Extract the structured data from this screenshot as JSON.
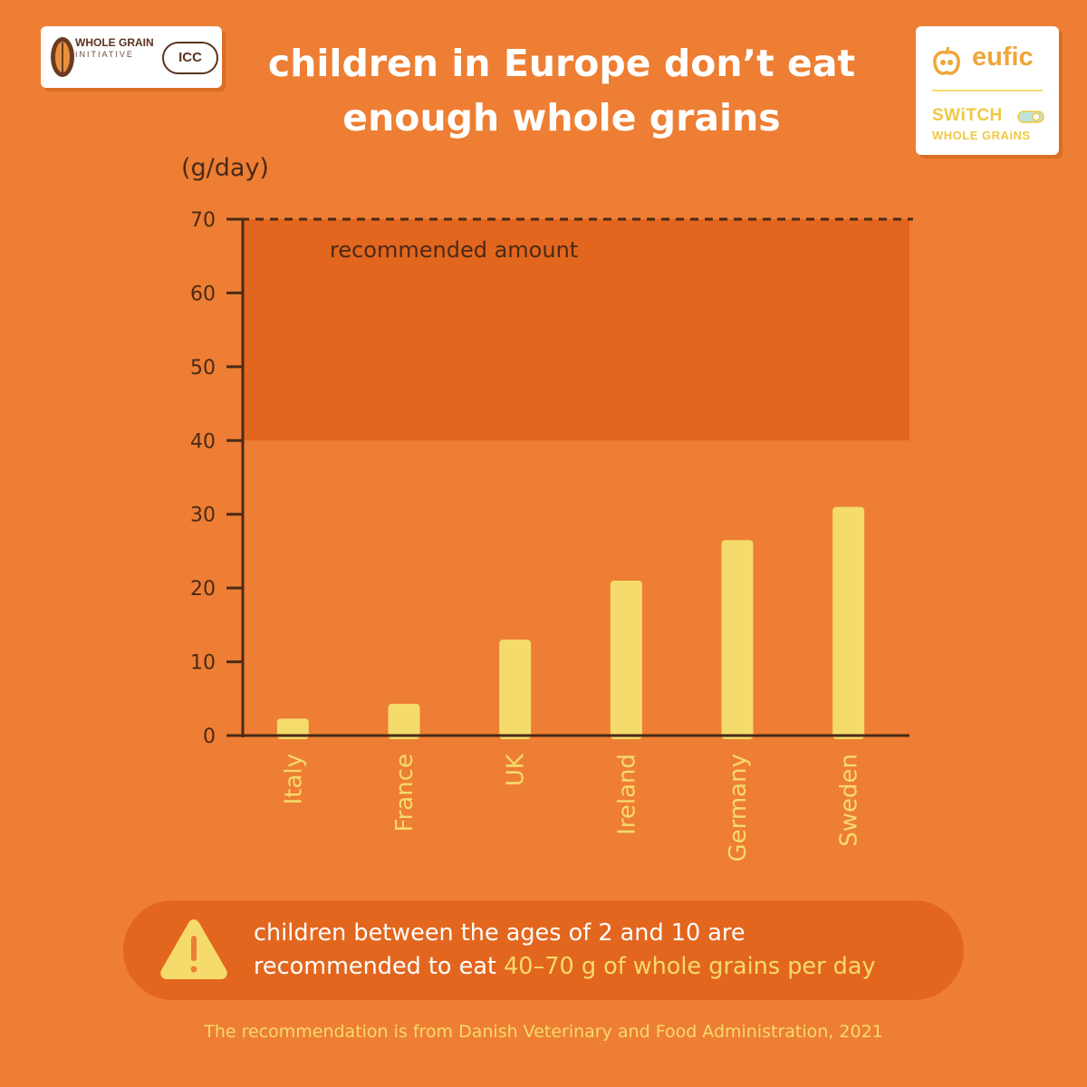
{
  "title_line1": "children in Europe don’t eat",
  "title_line2": "enough whole grains",
  "logos": {
    "whole_grain_title": "WHOLE GRAIN",
    "whole_grain_sub": "INITIATIVE",
    "icc": "ICC",
    "eufic": "eufic",
    "switch_line1": "SWiTCH",
    "switch_line2": "WHOLE GRAiNS"
  },
  "chart_data": {
    "type": "bar",
    "ylabel": "(g/day)",
    "ylim": [
      0,
      70
    ],
    "yticks": [
      0,
      10,
      20,
      30,
      40,
      50,
      60,
      70
    ],
    "categories": [
      "Italy",
      "France",
      "UK",
      "Ireland",
      "Germany",
      "Sweden"
    ],
    "values": [
      2.3,
      4.3,
      13,
      21,
      26.5,
      31
    ],
    "recommended_band": {
      "from": 40,
      "to": 70,
      "label": "recommended amount"
    },
    "grid": false,
    "colors": {
      "bar": "#F5DB6B",
      "band": "#E3661E",
      "axis": "#4a2a17",
      "category_label": "#F5DB6B"
    }
  },
  "callout": {
    "icon": "warning-icon",
    "line1": "children between the ages of 2 and 10 are",
    "line2_prefix": "recommended to eat ",
    "line2_highlight": "40–70 g of whole grains per day"
  },
  "source": "The recommendation is from Danish Veterinary and Food Administration, 2021",
  "colors": {
    "background": "#EE7E33",
    "title": "#ffffff",
    "highlight": "#F5DB6B"
  }
}
